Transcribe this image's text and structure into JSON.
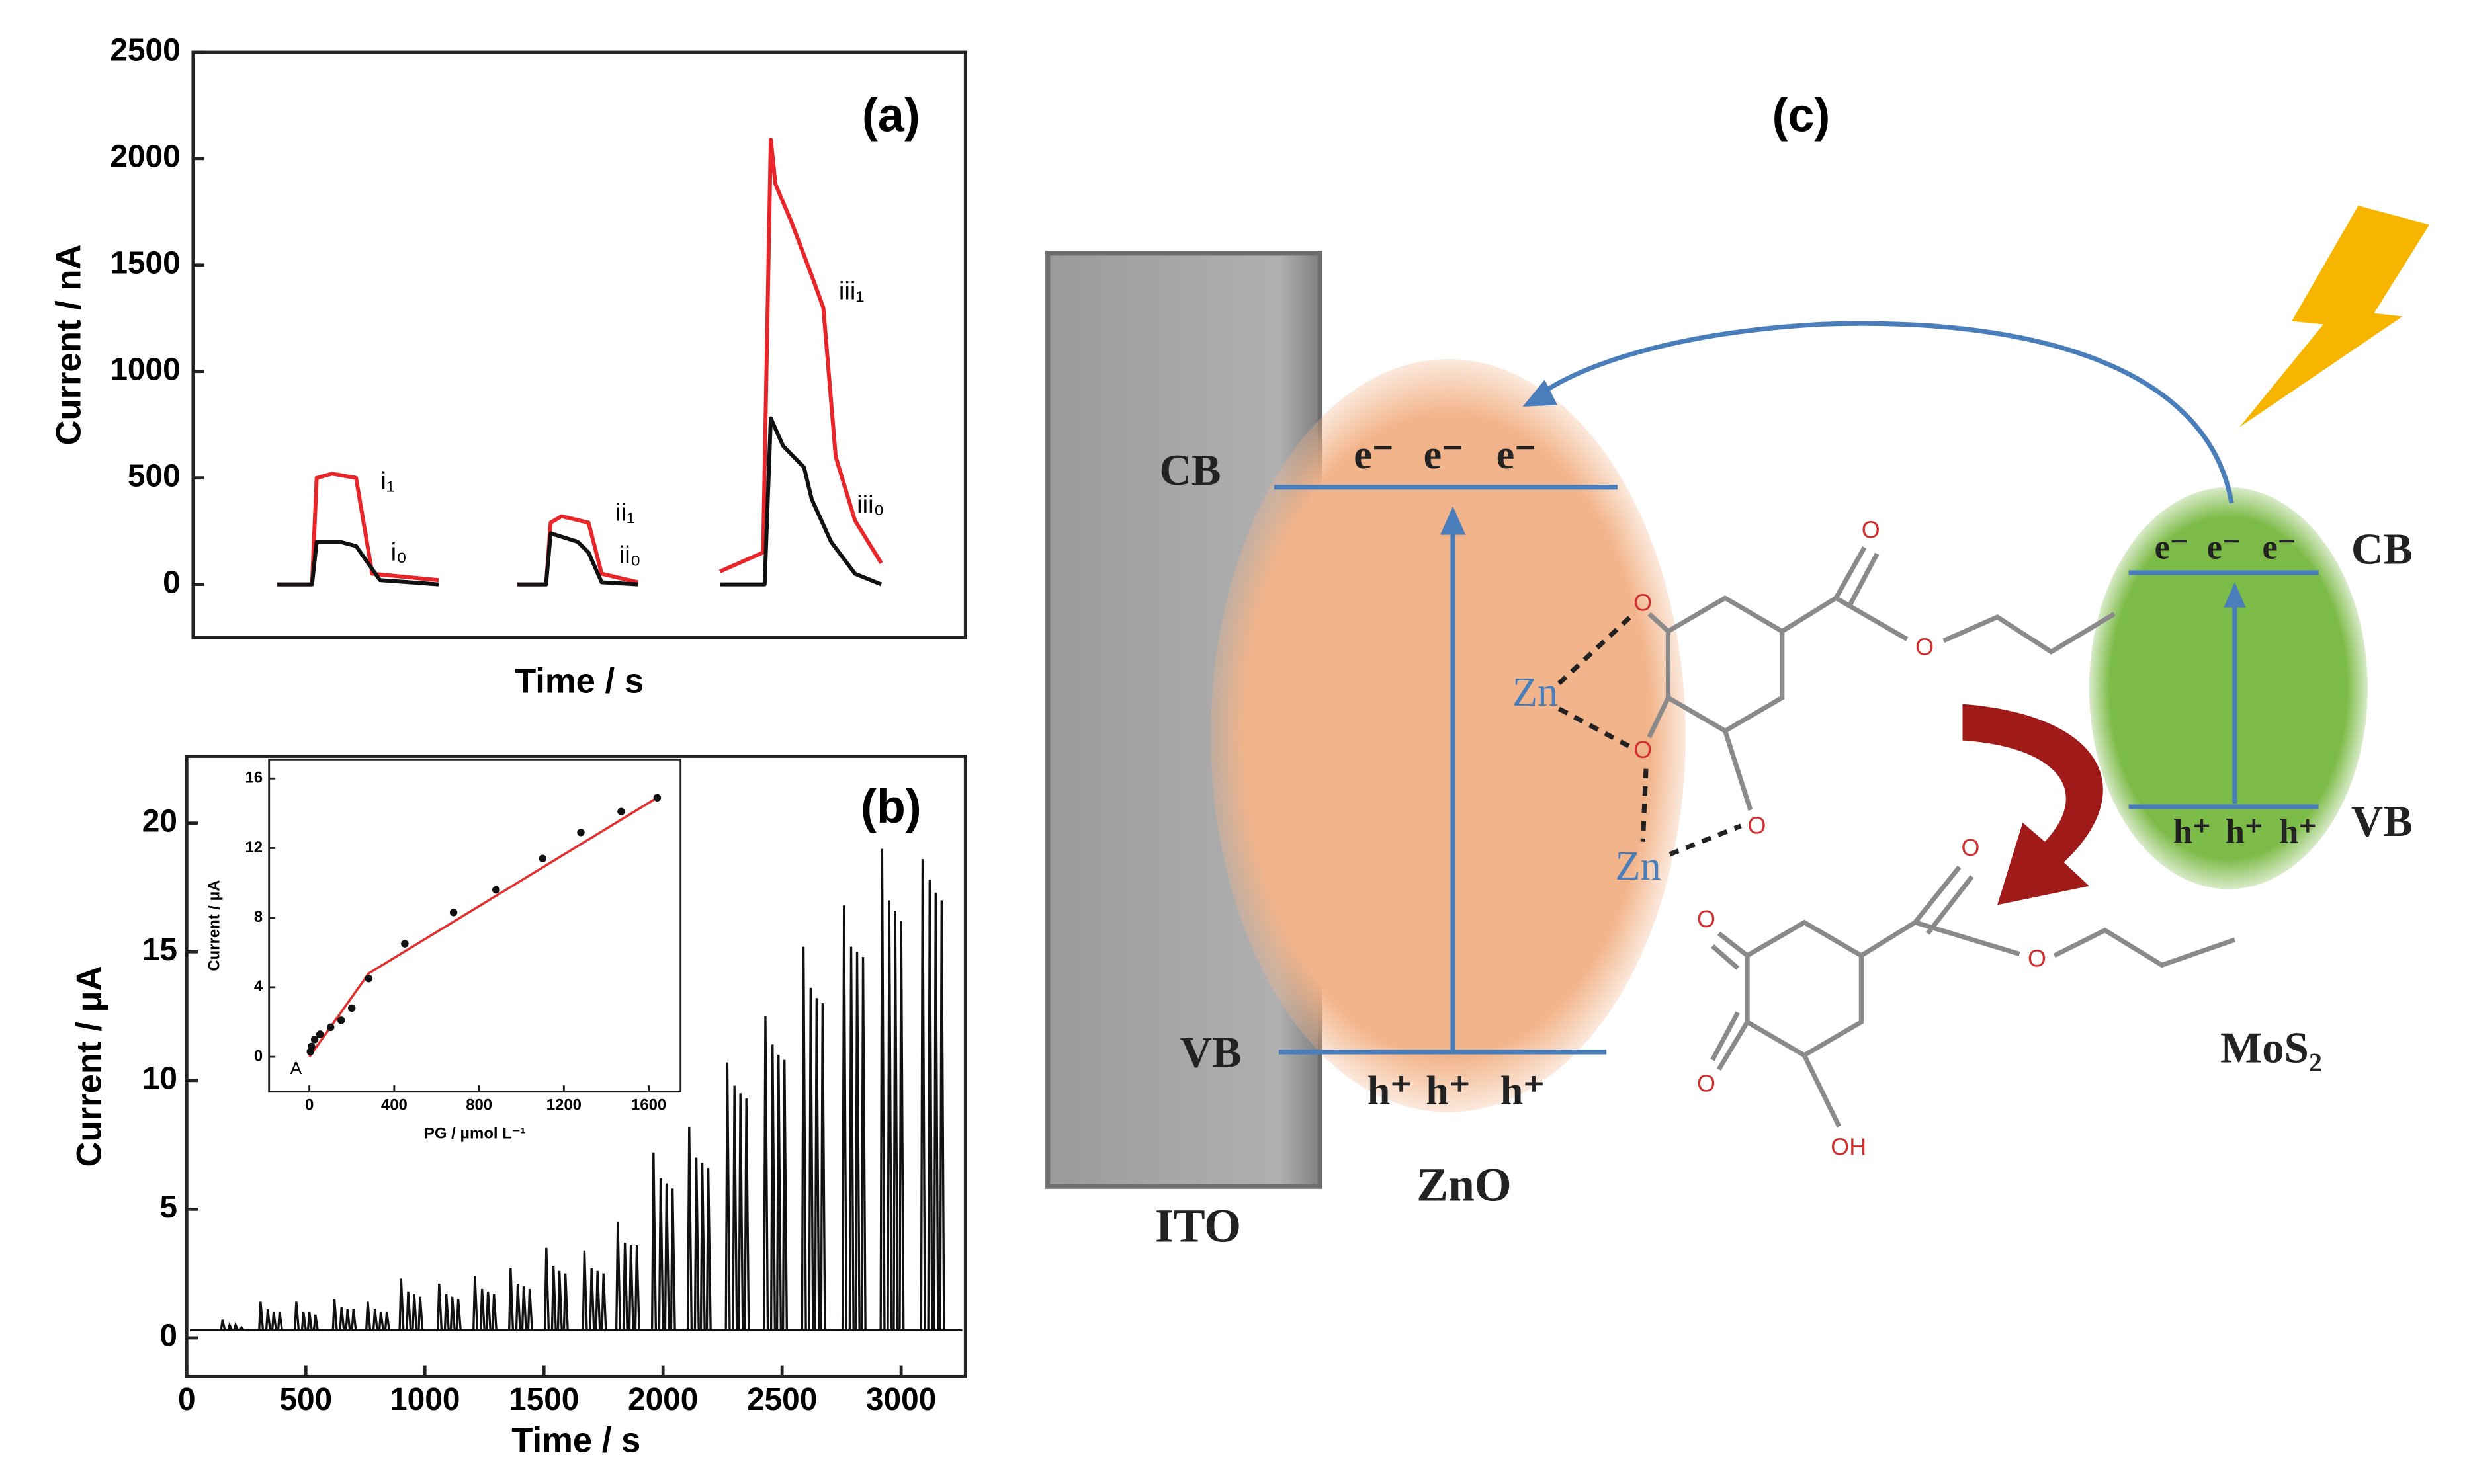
{
  "chart_data": [
    {
      "type": "line",
      "title": "(a)",
      "ylabel": "Current / nA",
      "xlabel": "Time / s",
      "xlim": [
        0,
        100
      ],
      "ylim": [
        -250,
        2500
      ],
      "yticks": [
        0,
        500,
        1000,
        1500,
        2000,
        2500
      ],
      "series": [
        {
          "color": "#e8262a",
          "x": [
            10.9,
            15.4,
            16.0,
            18.0,
            21.1,
            23.2,
            31.8,
            null,
            42.0,
            45.7,
            46.3,
            47.7,
            51.2,
            52.9,
            57.6,
            null,
            68.2,
            73.8,
            74.8,
            75.4,
            77.5,
            80.1,
            81.6,
            83.2,
            85.7,
            89.1
          ],
          "values": [
            0,
            0,
            500,
            520,
            500,
            50,
            20,
            null,
            0,
            0,
            290,
            320,
            290,
            50,
            10,
            null,
            60,
            150,
            2090,
            1880,
            1700,
            1450,
            1300,
            600,
            300,
            100
          ]
        },
        {
          "color": "#111111",
          "x": [
            10.9,
            15.4,
            16.0,
            19.0,
            21.1,
            24.2,
            31.8,
            null,
            42.0,
            45.7,
            46.3,
            49.8,
            51.2,
            52.9,
            57.6,
            null,
            68.2,
            74.0,
            74.8,
            76.4,
            79.1,
            80.1,
            82.6,
            85.7,
            89.1
          ],
          "values": [
            0,
            0,
            200,
            200,
            180,
            20,
            0,
            null,
            0,
            0,
            240,
            200,
            150,
            10,
            0,
            null,
            0,
            0,
            780,
            650,
            550,
            400,
            200,
            50,
            0
          ]
        }
      ],
      "annotations": [
        "i₁",
        "i₀",
        "ii₁",
        "ii₀",
        "iii₁",
        "iii₀"
      ]
    },
    {
      "type": "spike",
      "title": "(b)",
      "ylabel": "Current / μA",
      "xlabel": "Time / s",
      "xlim": [
        0,
        3270
      ],
      "ylim": [
        -1.5,
        22.6
      ],
      "xticks": [
        0,
        500,
        1000,
        1500,
        2000,
        2500,
        3000
      ],
      "yticks": [
        0,
        5,
        10,
        15,
        20
      ],
      "baseline": 0.3,
      "color": "#111111",
      "x": [
        150,
        180,
        205,
        230,
        310,
        340,
        365,
        390,
        460,
        490,
        515,
        540,
        620,
        650,
        675,
        700,
        760,
        790,
        815,
        840,
        900,
        930,
        955,
        980,
        1060,
        1090,
        1115,
        1140,
        1210,
        1240,
        1265,
        1290,
        1360,
        1390,
        1415,
        1440,
        1510,
        1540,
        1565,
        1590,
        1670,
        1700,
        1725,
        1750,
        1810,
        1840,
        1865,
        1890,
        1960,
        1990,
        2015,
        2040,
        2110,
        2140,
        2165,
        2190,
        2270,
        2300,
        2325,
        2350,
        2430,
        2460,
        2485,
        2510,
        2590,
        2620,
        2645,
        2670,
        2760,
        2790,
        2815,
        2840,
        2920,
        2950,
        2975,
        3000,
        3090,
        3120,
        3145,
        3170
      ],
      "values": [
        0.7,
        0.5,
        0.5,
        0.4,
        1.4,
        1.1,
        1.0,
        1.0,
        1.4,
        1.0,
        1.0,
        0.9,
        1.5,
        1.2,
        1.1,
        1.1,
        1.4,
        1.1,
        1.0,
        1.0,
        2.3,
        1.8,
        1.7,
        1.6,
        2.1,
        1.7,
        1.6,
        1.5,
        2.4,
        1.9,
        1.8,
        1.7,
        2.7,
        2.1,
        2.0,
        1.9,
        3.5,
        2.8,
        2.6,
        2.5,
        3.4,
        2.7,
        2.6,
        2.5,
        4.5,
        3.7,
        3.6,
        3.6,
        7.2,
        6.2,
        6.0,
        5.8,
        8.2,
        7.0,
        6.8,
        6.6,
        10.7,
        9.8,
        9.5,
        9.3,
        12.5,
        11.4,
        11.0,
        10.8,
        15.2,
        13.6,
        13.2,
        13.0,
        16.8,
        15.2,
        15.0,
        14.8,
        19.0,
        17.0,
        16.6,
        16.2,
        18.6,
        17.8,
        17.3,
        17.0
      ]
    },
    {
      "type": "scatter",
      "ylabel": "Current / μA",
      "xlabel": "PG / μmol L⁻¹",
      "label": "A",
      "xlim": [
        -190,
        1750
      ],
      "ylim": [
        -2,
        17.1
      ],
      "xticks": [
        0,
        400,
        800,
        1200,
        1600
      ],
      "yticks": [
        0,
        4,
        8,
        12,
        16
      ],
      "color": "#111111",
      "x": [
        5,
        10,
        25,
        50,
        100,
        150,
        200,
        280,
        450,
        680,
        880,
        1100,
        1280,
        1470,
        1640
      ],
      "values": [
        0.3,
        0.6,
        1.0,
        1.3,
        1.7,
        2.1,
        2.8,
        4.5,
        6.5,
        8.3,
        9.6,
        11.4,
        12.9,
        14.1,
        14.9
      ],
      "fit": {
        "color": "#e03030",
        "x": [
          0,
          280,
          1640
        ],
        "values": [
          0,
          4.8,
          14.9
        ]
      }
    }
  ],
  "diagram": {
    "title": "(c)",
    "ito": "ITO",
    "zno": {
      "label": "ZnO",
      "cb": "CB",
      "vb": "VB",
      "electrons": [
        "e⁻",
        "e⁻",
        "e⁻"
      ],
      "holes": [
        "h⁺",
        "h⁺",
        "h⁺"
      ]
    },
    "mos2": {
      "label": "MoS₂",
      "cb": "CB",
      "vb": "VB",
      "electrons": [
        "e⁻",
        "e⁻",
        "e⁻"
      ],
      "holes": [
        "h⁺",
        "h⁺",
        "h⁺"
      ]
    },
    "zinc": [
      "Zn",
      "Zn"
    ],
    "molecule1": [
      "O",
      "O",
      "O",
      "O",
      "O"
    ],
    "molecule2": [
      "O",
      "O",
      "O",
      "O",
      "OH"
    ]
  }
}
